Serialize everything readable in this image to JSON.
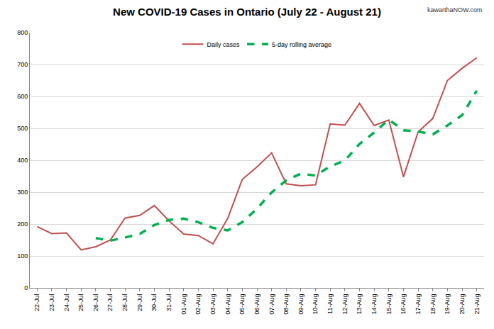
{
  "chart_data": {
    "type": "line",
    "title": "New COVID-19 Cases in Ontario (July 22 - August 21)",
    "annotations": [
      "kawarthaNOW.com"
    ],
    "categories": [
      "22-Jul",
      "23-Jul",
      "24-Jul",
      "25-Jul",
      "26-Jul",
      "27-Jul",
      "28-Jul",
      "29-Jul",
      "30-Jul",
      "31-Jul",
      "01-Aug",
      "02-Aug",
      "03-Aug",
      "04-Aug",
      "05-Aug",
      "06-Aug",
      "07-Aug",
      "08-Aug",
      "09-Aug",
      "10-Aug",
      "11-Aug",
      "12-Aug",
      "13-Aug",
      "14-Aug",
      "15-Aug",
      "16-Aug",
      "17-Aug",
      "18-Aug",
      "19-Aug",
      "20-Aug",
      "21-Aug"
    ],
    "series": [
      {
        "name": "Daily cases",
        "color": "#c0504d",
        "line_style": "solid",
        "values": [
          192,
          170,
          172,
          119,
          129,
          150,
          219,
          227,
          258,
          210,
          169,
          164,
          138,
          217,
          340,
          379,
          423,
          326,
          320,
          323,
          514,
          510,
          578,
          509,
          526,
          348,
          489,
          531,
          650,
          688,
          721
        ]
      },
      {
        "name": "5-day rolling average",
        "color": "#00b050",
        "line_style": "dashed",
        "values": [
          null,
          null,
          null,
          null,
          156,
          148,
          158,
          169,
          197,
          213,
          217,
          206,
          188,
          180,
          206,
          248,
          299,
          337,
          358,
          352,
          381,
          399,
          451,
          487,
          527,
          494,
          490,
          481,
          509,
          541,
          618
        ]
      }
    ],
    "ylim": [
      0,
      800
    ],
    "yticks": [
      0,
      100,
      200,
      300,
      400,
      500,
      600,
      700,
      800
    ],
    "grid": true,
    "legend": "top"
  }
}
